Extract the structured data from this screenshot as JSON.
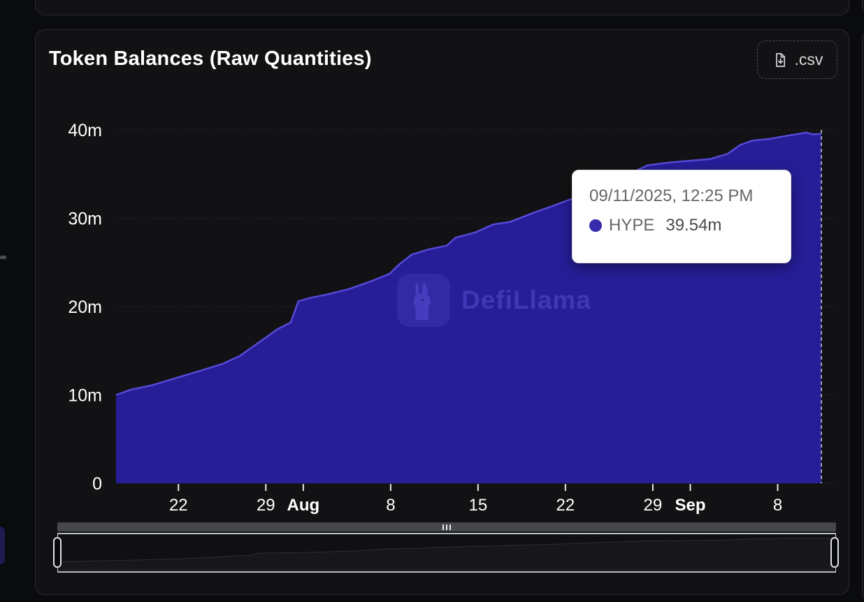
{
  "card": {
    "title": "Token Balances (Raw Quantities)",
    "csv_button": {
      "label": ".csv",
      "icon": "download-file-icon"
    }
  },
  "watermark": {
    "text": "DefiLlama",
    "icon": "llama-logo-icon"
  },
  "tooltip": {
    "date": "09/11/2025, 12:25 PM",
    "series_name": "HYPE",
    "value": "39.54m",
    "dot_color": "#372cab"
  },
  "colors": {
    "background": "#0a0b0c",
    "card": "#121214",
    "card_border": "#2b2b2f",
    "axis_text": "#ffffff",
    "gridline": "#2d2d30",
    "tick": "#e8e8e8",
    "pointer_line": "#cdced0",
    "area_fill": "#261d97",
    "area_line": "#564ad8"
  },
  "chart_data": {
    "type": "area",
    "title": "Token Balances (Raw Quantities)",
    "xlabel": "",
    "ylabel": "",
    "grid": "dotted-horizontal",
    "legend_position": "none",
    "x_axis": {
      "day_domain": [
        0,
        56.5
      ],
      "ticks": [
        {
          "label": "22",
          "day": 5,
          "bold": false
        },
        {
          "label": "29",
          "day": 12,
          "bold": false
        },
        {
          "label": "Aug",
          "day": 15,
          "bold": true
        },
        {
          "label": "8",
          "day": 22,
          "bold": false
        },
        {
          "label": "15",
          "day": 29,
          "bold": false
        },
        {
          "label": "22",
          "day": 36,
          "bold": false
        },
        {
          "label": "29",
          "day": 43,
          "bold": false
        },
        {
          "label": "Sep",
          "day": 46,
          "bold": true
        },
        {
          "label": "8",
          "day": 53,
          "bold": false
        }
      ]
    },
    "y_axis": {
      "min": 0,
      "max": 40,
      "unit": "m",
      "ticks": [
        {
          "label": "0",
          "value": 0
        },
        {
          "label": "10m",
          "value": 10
        },
        {
          "label": "20m",
          "value": 20
        },
        {
          "label": "30m",
          "value": 30
        },
        {
          "label": "40m",
          "value": 40
        }
      ]
    },
    "series": [
      {
        "name": "HYPE",
        "line_color": "#564ad8",
        "fill_color": "#261d97",
        "points_day_value_m": [
          [
            0,
            10.0
          ],
          [
            1.2,
            10.6
          ],
          [
            2.9,
            11.1
          ],
          [
            5,
            12.0
          ],
          [
            6.9,
            12.8
          ],
          [
            8.5,
            13.5
          ],
          [
            9.9,
            14.4
          ],
          [
            10.8,
            15.3
          ],
          [
            12,
            16.5
          ],
          [
            13,
            17.5
          ],
          [
            14,
            18.2
          ],
          [
            14.6,
            20.6
          ],
          [
            15.6,
            21.0
          ],
          [
            17,
            21.4
          ],
          [
            18.7,
            22.0
          ],
          [
            20.3,
            22.8
          ],
          [
            21.9,
            23.7
          ],
          [
            22.7,
            24.8
          ],
          [
            23.7,
            25.9
          ],
          [
            25.1,
            26.5
          ],
          [
            26.5,
            26.9
          ],
          [
            27.2,
            27.8
          ],
          [
            28.8,
            28.4
          ],
          [
            30.2,
            29.3
          ],
          [
            31.6,
            29.6
          ],
          [
            33.4,
            30.6
          ],
          [
            35,
            31.4
          ],
          [
            36.7,
            32.3
          ],
          [
            38.3,
            33.4
          ],
          [
            39.9,
            34.4
          ],
          [
            41.2,
            35.1
          ],
          [
            42.6,
            36.0
          ],
          [
            44.3,
            36.3
          ],
          [
            45.9,
            36.5
          ],
          [
            47.6,
            36.7
          ],
          [
            49,
            37.3
          ],
          [
            50,
            38.3
          ],
          [
            51,
            38.8
          ],
          [
            52.4,
            39.0
          ],
          [
            54,
            39.4
          ],
          [
            55.3,
            39.7
          ],
          [
            55.8,
            39.5
          ],
          [
            56.5,
            39.54
          ]
        ]
      }
    ],
    "pointer": {
      "day": 56.5,
      "style": "dashed-vertical"
    },
    "last_point": {
      "date": "09/11/2025, 12:25 PM",
      "series": "HYPE",
      "value_m": 39.54
    }
  }
}
